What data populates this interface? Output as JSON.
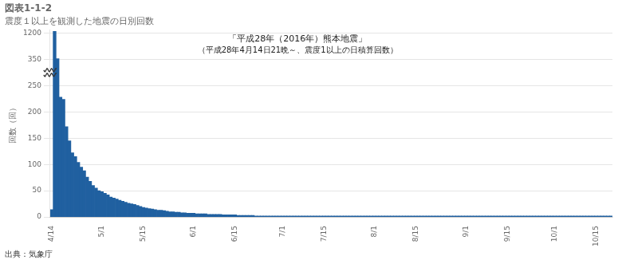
{
  "chart_data": {
    "type": "bar",
    "title": "図表1-1-2",
    "subtitle": "震度１以上を観測した地震の日別回数",
    "ylabel": "回数（回）",
    "annotations": [
      "「平成28年（2016年）熊本地震」",
      "（平成28年4月14日21晩～、震度1以上の日積算回数）",
      "出典：気象庁"
    ],
    "color": "#2060a0",
    "grid": true,
    "ylim": [
      0,
      1300
    ],
    "yticks": [
      0,
      50,
      100,
      150,
      200,
      250,
      350,
      1200
    ],
    "categories": [
      "4/14",
      null,
      null,
      null,
      null,
      null,
      null,
      null,
      null,
      null,
      null,
      null,
      null,
      null,
      null,
      null,
      null,
      "5/1",
      null,
      null,
      null,
      null,
      null,
      null,
      null,
      null,
      null,
      null,
      null,
      null,
      null,
      "5/15",
      null,
      null,
      null,
      null,
      null,
      null,
      null,
      null,
      null,
      null,
      null,
      null,
      null,
      null,
      null,
      null,
      "6/1",
      null,
      null,
      null,
      null,
      null,
      null,
      null,
      null,
      null,
      null,
      null,
      null,
      null,
      "6/15",
      null,
      null,
      null,
      null,
      null,
      null,
      null,
      null,
      null,
      null,
      null,
      null,
      null,
      null,
      null,
      "7/1",
      null,
      null,
      null,
      null,
      null,
      null,
      null,
      null,
      null,
      null,
      null,
      null,
      null,
      "7/15",
      null,
      null,
      null,
      null,
      null,
      null,
      null,
      null,
      null,
      null,
      null,
      null,
      null,
      null,
      null,
      null,
      "8/1",
      null,
      null,
      null,
      null,
      null,
      null,
      null,
      null,
      null,
      null,
      null,
      null,
      null,
      "8/15",
      null,
      null,
      null,
      null,
      null,
      null,
      null,
      null,
      null,
      null,
      null,
      null,
      null,
      null,
      null,
      null,
      "9/1",
      null,
      null,
      null,
      null,
      null,
      null,
      null,
      null,
      null,
      null,
      null,
      null,
      null,
      "9/15",
      null,
      null,
      null,
      null,
      null,
      null,
      null,
      null,
      null,
      null,
      null,
      null,
      null,
      null,
      null,
      "10/1",
      null,
      null,
      null,
      null,
      null,
      null,
      null,
      null,
      null,
      null,
      null,
      null,
      null,
      "10/15",
      null,
      null,
      null,
      null,
      null
    ],
    "values": [
      14,
      1258,
      370,
      228,
      224,
      172,
      145,
      122,
      115,
      104,
      95,
      88,
      76,
      68,
      60,
      55,
      50,
      48,
      45,
      42,
      38,
      36,
      34,
      32,
      30,
      28,
      26,
      25,
      24,
      22,
      20,
      18,
      17,
      16,
      15,
      14,
      13,
      13,
      12,
      11,
      10,
      10,
      9,
      9,
      8,
      8,
      7,
      7,
      7,
      6,
      6,
      6,
      6,
      5,
      5,
      5,
      5,
      5,
      4,
      4,
      4,
      4,
      4,
      3,
      3,
      3,
      3,
      3,
      3,
      2,
      2,
      2,
      2,
      2,
      2,
      2,
      2,
      2,
      2,
      2,
      2,
      2,
      2,
      2,
      2,
      2,
      2,
      2,
      2,
      2,
      2,
      2,
      2,
      2,
      2,
      2,
      2,
      2,
      2,
      2,
      2,
      2,
      2,
      2,
      2,
      2,
      2,
      2,
      2,
      2,
      2,
      2,
      2,
      2,
      2,
      2,
      2,
      2,
      2,
      2,
      2,
      2,
      2,
      2,
      2,
      2,
      2,
      2,
      2,
      2,
      2,
      2,
      2,
      2,
      2,
      2,
      2,
      2,
      2,
      2,
      2,
      2,
      2,
      2,
      2,
      2,
      2,
      2,
      2,
      2,
      2,
      2,
      2,
      2,
      2,
      2,
      2,
      2,
      2,
      2,
      2,
      2,
      2,
      2,
      2,
      2,
      2,
      2,
      2,
      2,
      2,
      2,
      2,
      2,
      2,
      2,
      2,
      2,
      2,
      2,
      2,
      2,
      2,
      2,
      2,
      2,
      2,
      2,
      2,
      2
    ]
  }
}
